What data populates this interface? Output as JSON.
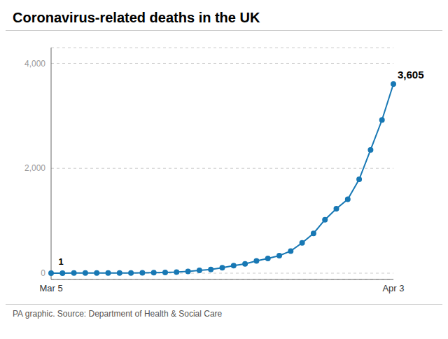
{
  "chart_data": {
    "type": "line",
    "title": "Coronavirus-related deaths in the UK",
    "subtitle": "PA graphic. Source: Department of Health & Social Care",
    "categories": [
      "Mar 5",
      null,
      null,
      null,
      null,
      null,
      null,
      null,
      null,
      null,
      null,
      null,
      null,
      null,
      null,
      null,
      null,
      null,
      null,
      null,
      null,
      null,
      null,
      null,
      null,
      null,
      null,
      null,
      null,
      null,
      "Apr 3"
    ],
    "values": [
      1,
      1,
      2,
      2,
      3,
      3,
      5,
      5,
      8,
      11,
      14,
      21,
      35,
      55,
      71,
      103,
      144,
      177,
      233,
      281,
      335,
      422,
      578,
      759,
      1019,
      1228,
      1408,
      1789,
      2352,
      2921,
      3605
    ],
    "color": "#1878b4",
    "marker": "circle",
    "ylim": [
      -120,
      4300
    ],
    "yticks": [
      0,
      {
        "value": 2000,
        "label": "2,000"
      },
      {
        "value": 4000,
        "label": "4,000"
      }
    ],
    "grid": true,
    "annotations": [
      "1",
      "3,605"
    ]
  }
}
